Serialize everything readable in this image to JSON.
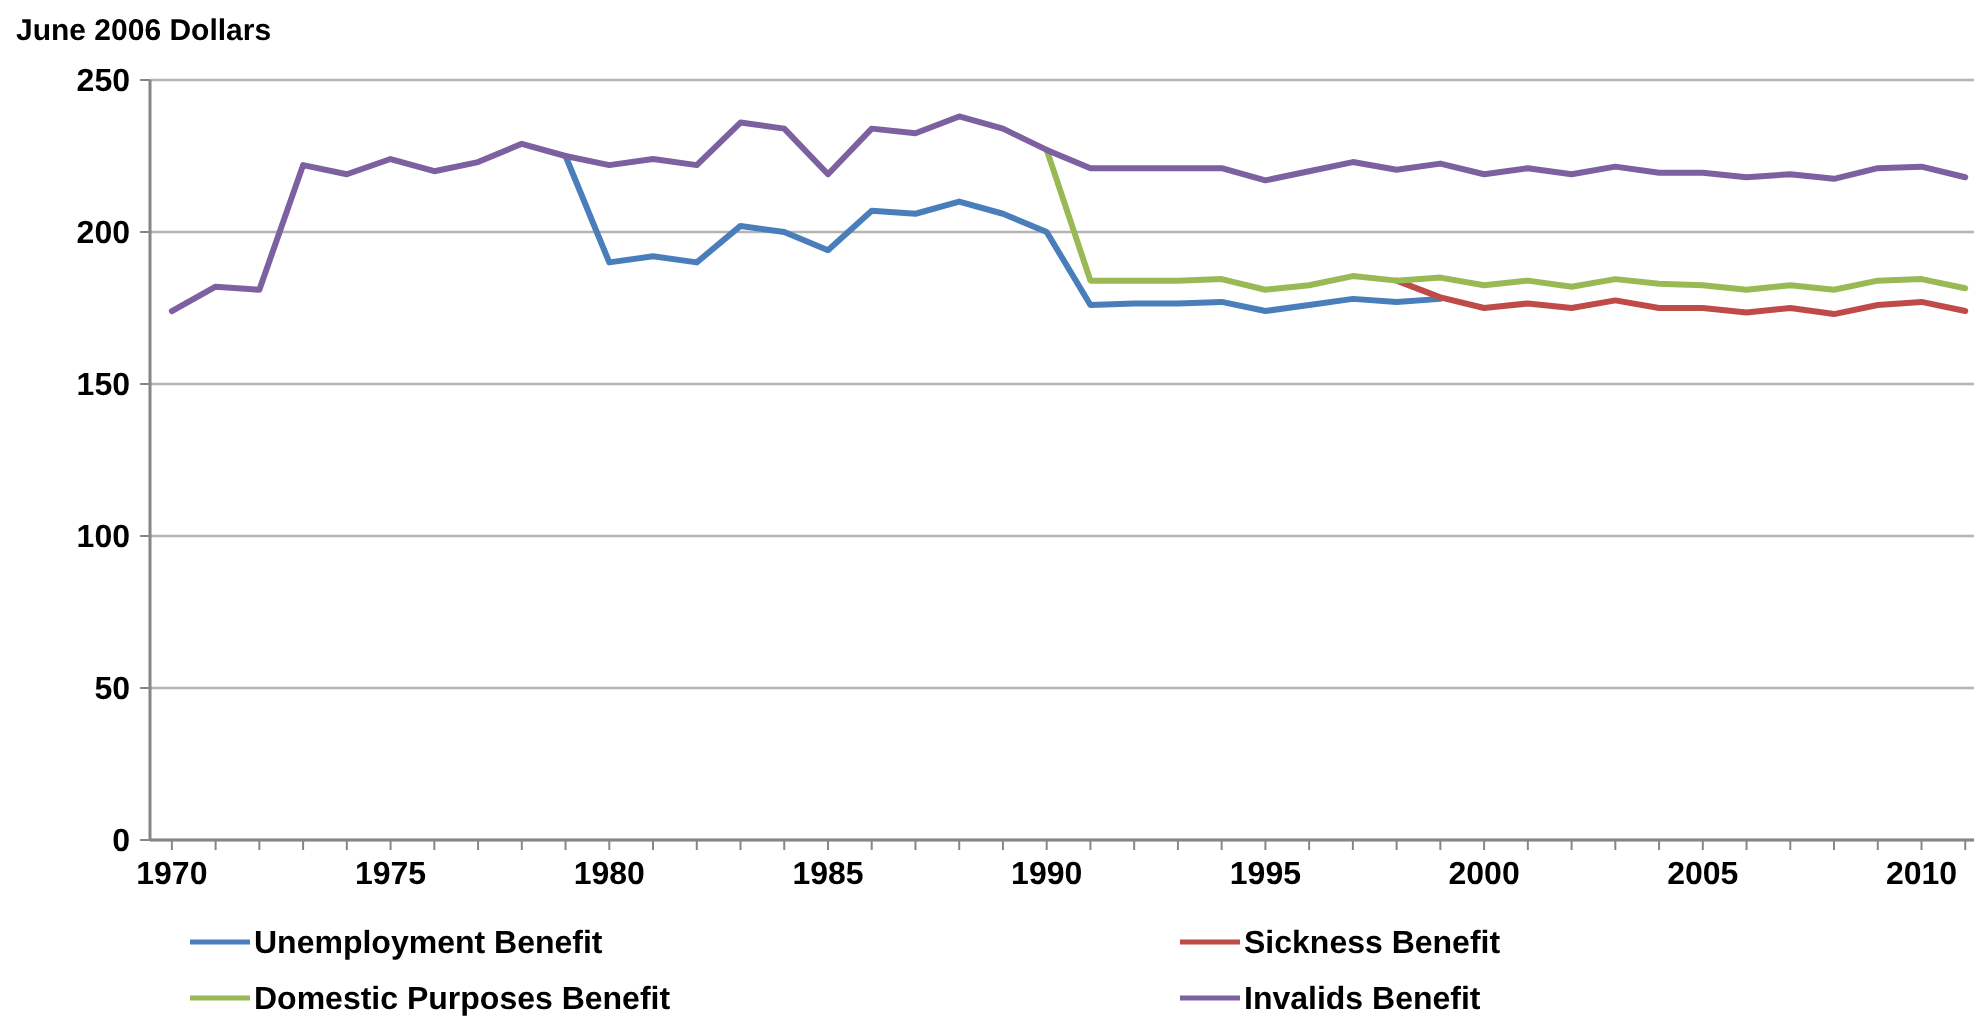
{
  "chart_data": {
    "type": "line",
    "ylabel": "June 2006 Dollars",
    "x": [
      1970,
      1971,
      1972,
      1973,
      1974,
      1975,
      1976,
      1977,
      1978,
      1979,
      1980,
      1981,
      1982,
      1983,
      1984,
      1985,
      1986,
      1987,
      1988,
      1989,
      1990,
      1991,
      1992,
      1993,
      1994,
      1995,
      1996,
      1997,
      1998,
      1999,
      2000,
      2001,
      2002,
      2003,
      2004,
      2005,
      2006,
      2007,
      2008,
      2009,
      2010,
      2011
    ],
    "xlim": [
      1969.5,
      2011.2
    ],
    "xticks": [
      1970,
      {
        "value": 1971,
        "label": null
      },
      {
        "value": 1972,
        "label": null
      },
      {
        "value": 1973,
        "label": null
      },
      {
        "value": 1974,
        "label": null
      },
      1975,
      {
        "value": 1976,
        "label": null
      },
      {
        "value": 1977,
        "label": null
      },
      {
        "value": 1978,
        "label": null
      },
      {
        "value": 1979,
        "label": null
      },
      1980,
      {
        "value": 1981,
        "label": null
      },
      {
        "value": 1982,
        "label": null
      },
      {
        "value": 1983,
        "label": null
      },
      {
        "value": 1984,
        "label": null
      },
      1985,
      {
        "value": 1986,
        "label": null
      },
      {
        "value": 1987,
        "label": null
      },
      {
        "value": 1988,
        "label": null
      },
      {
        "value": 1989,
        "label": null
      },
      1990,
      {
        "value": 1991,
        "label": null
      },
      {
        "value": 1992,
        "label": null
      },
      {
        "value": 1993,
        "label": null
      },
      {
        "value": 1994,
        "label": null
      },
      1995,
      {
        "value": 1996,
        "label": null
      },
      {
        "value": 1997,
        "label": null
      },
      {
        "value": 1998,
        "label": null
      },
      {
        "value": 1999,
        "label": null
      },
      2000,
      {
        "value": 2001,
        "label": null
      },
      {
        "value": 2002,
        "label": null
      },
      {
        "value": 2003,
        "label": null
      },
      {
        "value": 2004,
        "label": null
      },
      2005,
      {
        "value": 2006,
        "label": null
      },
      {
        "value": 2007,
        "label": null
      },
      {
        "value": 2008,
        "label": null
      },
      {
        "value": 2009,
        "label": null
      },
      2010,
      {
        "value": 2011,
        "label": null
      }
    ],
    "ylim": [
      0,
      250
    ],
    "yticks": [
      0,
      50,
      100,
      150,
      200,
      250
    ],
    "grid": "y",
    "legend": "bottom",
    "marker": "none",
    "line_style": "solid",
    "series": [
      {
        "name": "Unemployment Benefit",
        "color": "#4a7ebb",
        "values": [
          null,
          null,
          null,
          null,
          null,
          null,
          null,
          null,
          null,
          225,
          190,
          192,
          190,
          202,
          200,
          194,
          207,
          206,
          210,
          206,
          200,
          176,
          176.5,
          176.5,
          177,
          174,
          176,
          178,
          177,
          178,
          null,
          null,
          null,
          null,
          null,
          null,
          null,
          null,
          null,
          null,
          null,
          null
        ]
      },
      {
        "name": "Sickness Benefit",
        "color": "#be4b48",
        "values": [
          null,
          null,
          null,
          null,
          null,
          null,
          null,
          null,
          null,
          null,
          null,
          null,
          null,
          null,
          null,
          null,
          null,
          null,
          null,
          null,
          null,
          null,
          null,
          null,
          null,
          null,
          null,
          null,
          184,
          178.5,
          175,
          176.5,
          175,
          177.5,
          175,
          175,
          173.5,
          175,
          173,
          176,
          177,
          174
        ]
      },
      {
        "name": "Domestic Purposes Benefit",
        "color": "#98b954",
        "values": [
          null,
          null,
          null,
          null,
          null,
          null,
          null,
          null,
          null,
          null,
          null,
          null,
          null,
          null,
          null,
          null,
          null,
          null,
          null,
          null,
          227,
          184,
          184,
          184,
          184.5,
          181,
          182.5,
          185.5,
          184,
          185,
          182.5,
          184,
          182,
          184.5,
          183,
          182.5,
          181,
          182.5,
          181,
          184,
          184.5,
          181.5
        ]
      },
      {
        "name": "Invalids Benefit",
        "color": "#7d60a0",
        "values": [
          174,
          182,
          181,
          222,
          219,
          224,
          220,
          223,
          229,
          225,
          222,
          224,
          222,
          236,
          234,
          219,
          234,
          232.5,
          238,
          234,
          227,
          221,
          221,
          221,
          221,
          217,
          220,
          223,
          220.5,
          222.5,
          219,
          221,
          219,
          221.5,
          219.5,
          219.5,
          218,
          219,
          217.5,
          221,
          221.5,
          218
        ]
      }
    ]
  }
}
